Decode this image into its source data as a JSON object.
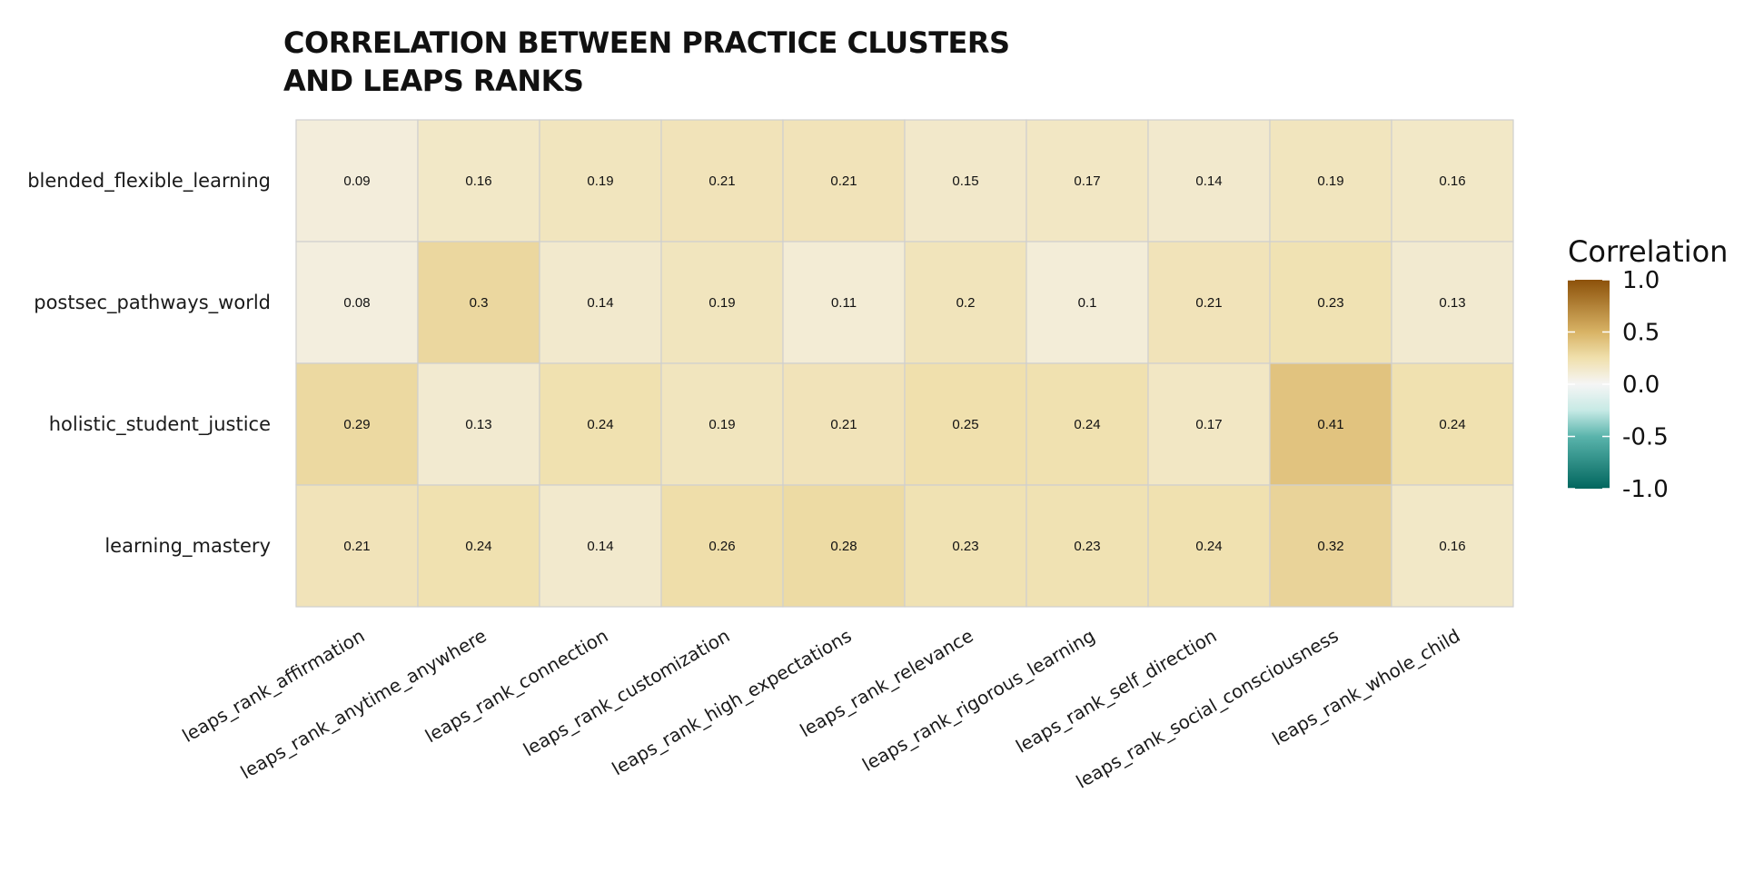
{
  "chart_data": {
    "type": "heatmap",
    "title_lines": [
      "CORRELATION BETWEEN PRACTICE CLUSTERS",
      "AND LEAPS RANKS"
    ],
    "rows": [
      "blended_flexible_learning",
      "postsec_pathways_world",
      "holistic_student_justice",
      "learning_mastery"
    ],
    "columns": [
      "leaps_rank_affirmation",
      "leaps_rank_anytime_anywhere",
      "leaps_rank_connection",
      "leaps_rank_customization",
      "leaps_rank_high_expectations",
      "leaps_rank_relevance",
      "leaps_rank_rigorous_learning",
      "leaps_rank_self_direction",
      "leaps_rank_social_consciousness",
      "leaps_rank_whole_child"
    ],
    "values": [
      [
        0.09,
        0.16,
        0.19,
        0.21,
        0.21,
        0.15,
        0.17,
        0.14,
        0.19,
        0.16
      ],
      [
        0.08,
        0.3,
        0.14,
        0.19,
        0.11,
        0.2,
        0.1,
        0.21,
        0.23,
        0.13
      ],
      [
        0.29,
        0.13,
        0.24,
        0.19,
        0.21,
        0.25,
        0.24,
        0.17,
        0.41,
        0.24
      ],
      [
        0.21,
        0.24,
        0.14,
        0.26,
        0.28,
        0.23,
        0.23,
        0.24,
        0.32,
        0.16
      ]
    ],
    "cell_labels": [
      [
        "0.09",
        "0.16",
        "0.19",
        "0.21",
        "0.21",
        "0.15",
        "0.17",
        "0.14",
        "0.19",
        "0.16"
      ],
      [
        "0.08",
        "0.3",
        "0.14",
        "0.19",
        "0.11",
        "0.2",
        "0.1",
        "0.21",
        "0.23",
        "0.13"
      ],
      [
        "0.29",
        "0.13",
        "0.24",
        "0.19",
        "0.21",
        "0.25",
        "0.24",
        "0.17",
        "0.41",
        "0.24"
      ],
      [
        "0.21",
        "0.24",
        "0.14",
        "0.26",
        "0.28",
        "0.23",
        "0.23",
        "0.24",
        "0.32",
        "0.16"
      ]
    ],
    "legend": {
      "title": "Correlation",
      "range": [
        -1.0,
        1.0
      ],
      "ticks": [
        1.0,
        0.5,
        0.0,
        -0.5,
        -1.0
      ],
      "tick_labels": [
        "1.0",
        "0.5",
        "0.0",
        "-0.5",
        "-1.0"
      ],
      "color_stops": [
        {
          "value": 1.0,
          "color": "#8c510a"
        },
        {
          "value": 0.5,
          "color": "#d8b365"
        },
        {
          "value": 0.25,
          "color": "#f0e0ad"
        },
        {
          "value": 0.0,
          "color": "#f5f5f5"
        },
        {
          "value": -0.25,
          "color": "#c7eae5"
        },
        {
          "value": -0.5,
          "color": "#5ab4ac"
        },
        {
          "value": -1.0,
          "color": "#01665e"
        }
      ],
      "placement": "right"
    },
    "colors": {
      "cell_border": "#cfcfcf"
    }
  }
}
